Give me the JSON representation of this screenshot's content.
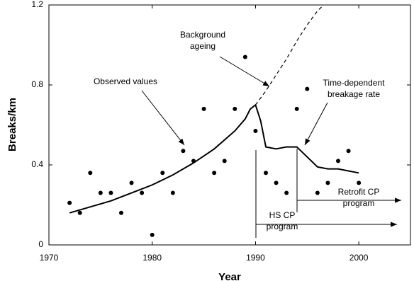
{
  "chart_data": {
    "type": "scatter",
    "x_label": "Year",
    "y_label": "Breaks/km",
    "xlim": [
      1970,
      2005
    ],
    "xticks": [
      1970,
      1980,
      1990,
      2000
    ],
    "ylim": [
      0,
      1.2
    ],
    "yticks": [
      0,
      0.4,
      0.8,
      1.2
    ],
    "series": [
      {
        "type": "scatter",
        "color": "#000000",
        "x": [
          1972,
          1973,
          1974,
          1975,
          1976,
          1977,
          1978,
          1979,
          1980,
          1981,
          1982,
          1983,
          1984,
          1985,
          1986,
          1987,
          1988,
          1989,
          1990,
          1991,
          1992,
          1993,
          1994,
          1995,
          1996,
          1997,
          1998,
          1999,
          2000
        ],
        "values": [
          0.21,
          0.16,
          0.36,
          0.26,
          0.26,
          0.16,
          0.31,
          0.26,
          0.05,
          0.36,
          0.26,
          0.47,
          0.42,
          0.68,
          0.36,
          0.42,
          0.68,
          0.94,
          0.57,
          0.36,
          0.31,
          0.26,
          0.68,
          0.78,
          0.26,
          0.31,
          0.42,
          0.47,
          0.31
        ]
      },
      {
        "type": "line",
        "color": "#000000",
        "dashed": false,
        "x": [
          1972,
          1974,
          1976,
          1978,
          1980,
          1982,
          1984,
          1986,
          1988,
          1989,
          1989.5,
          1990,
          1990.5,
          1991,
          1992,
          1993,
          1994,
          1995,
          1996,
          1997,
          1998,
          1999,
          2000
        ],
        "values": [
          0.16,
          0.19,
          0.22,
          0.26,
          0.3,
          0.35,
          0.41,
          0.48,
          0.57,
          0.63,
          0.68,
          0.7,
          0.62,
          0.49,
          0.48,
          0.49,
          0.49,
          0.44,
          0.39,
          0.38,
          0.38,
          0.37,
          0.36
        ]
      },
      {
        "type": "line",
        "color": "#000000",
        "dashed": true,
        "x": [
          1990,
          1991,
          1992,
          1993,
          1994,
          1995,
          1996,
          1996.6
        ],
        "values": [
          0.7,
          0.77,
          0.85,
          0.93,
          1.02,
          1.1,
          1.17,
          1.2
        ]
      }
    ],
    "annotations": [
      {
        "lines": [
          "Background",
          "ageing"
        ]
      },
      {
        "lines": [
          "Observed values"
        ]
      },
      {
        "lines": [
          "Time-dependent",
          "breakage rate"
        ]
      },
      {
        "lines": [
          "Retrofit CP",
          "program"
        ]
      },
      {
        "lines": [
          "HS CP",
          "program"
        ]
      }
    ]
  }
}
